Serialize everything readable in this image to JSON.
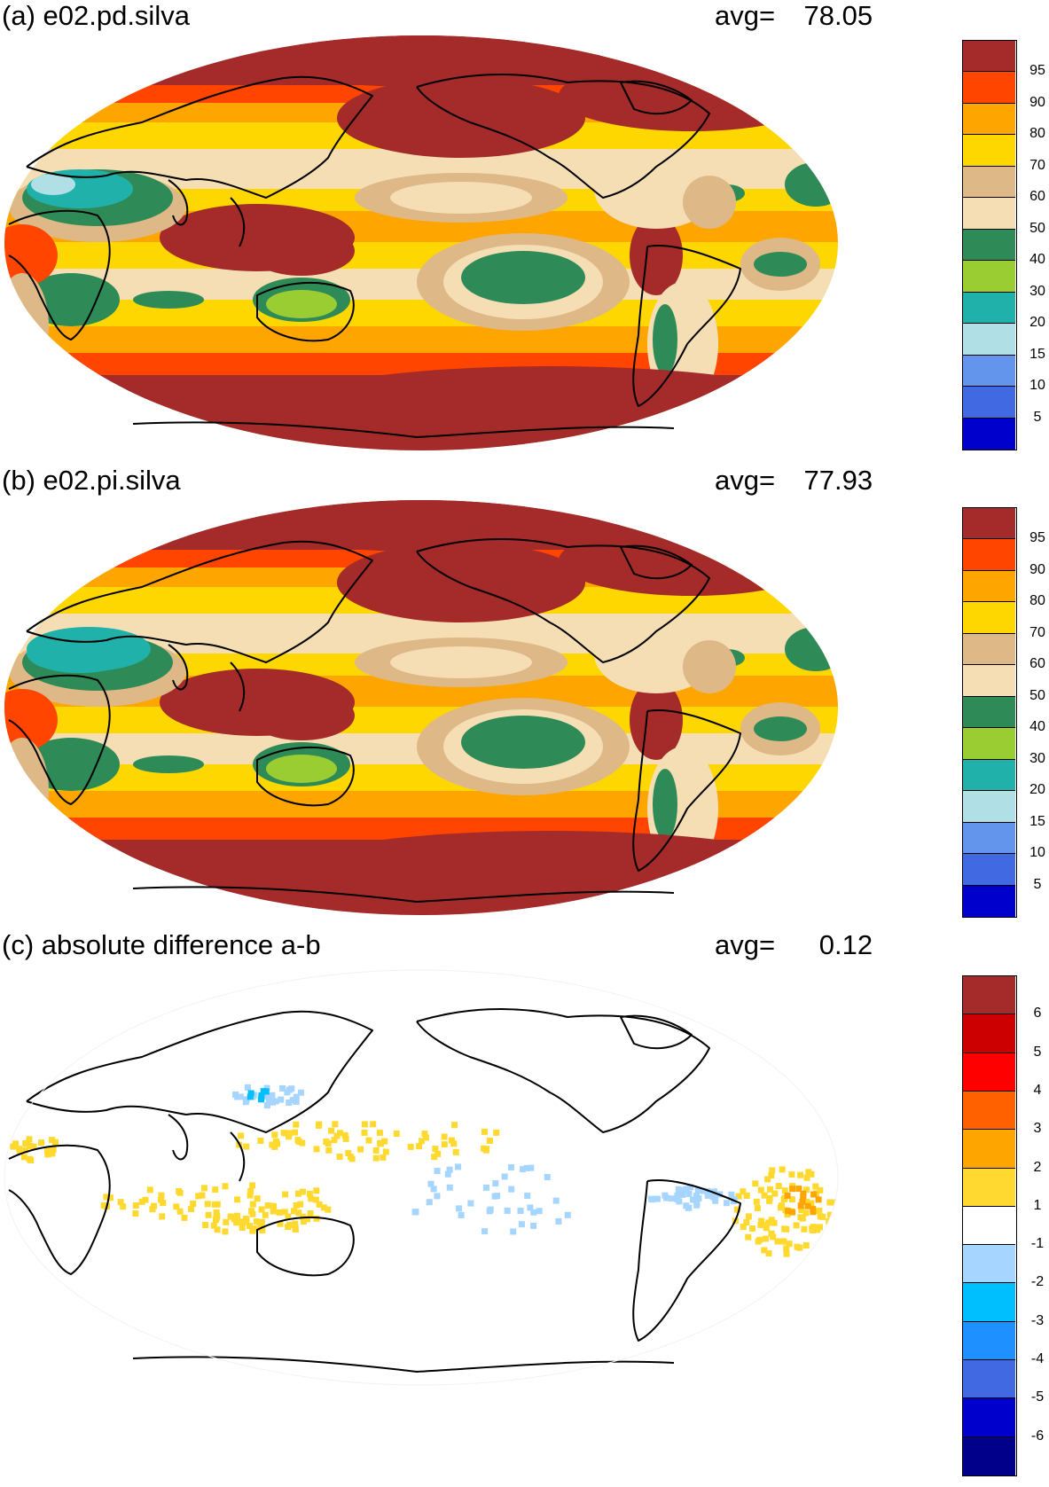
{
  "panels": [
    {
      "title": "(a) e02.pd.silva",
      "avg_label": "avg=",
      "avg_value": "78.05",
      "variant": "pd"
    },
    {
      "title": "(b) e02.pi.silva",
      "avg_label": "avg=",
      "avg_value": "77.93",
      "variant": "pi"
    },
    {
      "title": "(c) absolute difference a-b",
      "avg_label": "avg=",
      "avg_value": "0.12",
      "variant": "diff"
    }
  ],
  "colorbar_main": {
    "colors": [
      "#a52a2a",
      "#ff4500",
      "#ffa500",
      "#ffd700",
      "#deb887",
      "#f5deb3",
      "#2e8b57",
      "#9acd32",
      "#20b2aa",
      "#b0e0e6",
      "#6495ed",
      "#4169e1",
      "#0000cd"
    ],
    "labels": [
      "95",
      "90",
      "80",
      "70",
      "60",
      "50",
      "40",
      "30",
      "20",
      "15",
      "10",
      "5"
    ]
  },
  "colorbar_diff": {
    "colors": [
      "#a52a2a",
      "#cd0000",
      "#ff0000",
      "#ff6000",
      "#ffa500",
      "#ffd92f",
      "#ffffff",
      "#a6d5ff",
      "#00bfff",
      "#1e90ff",
      "#4169e1",
      "#0000cd",
      "#00008b"
    ],
    "labels": [
      "6",
      "5",
      "4",
      "3",
      "2",
      "1",
      "-1",
      "-2",
      "-3",
      "-4",
      "-5",
      "-6"
    ]
  }
}
